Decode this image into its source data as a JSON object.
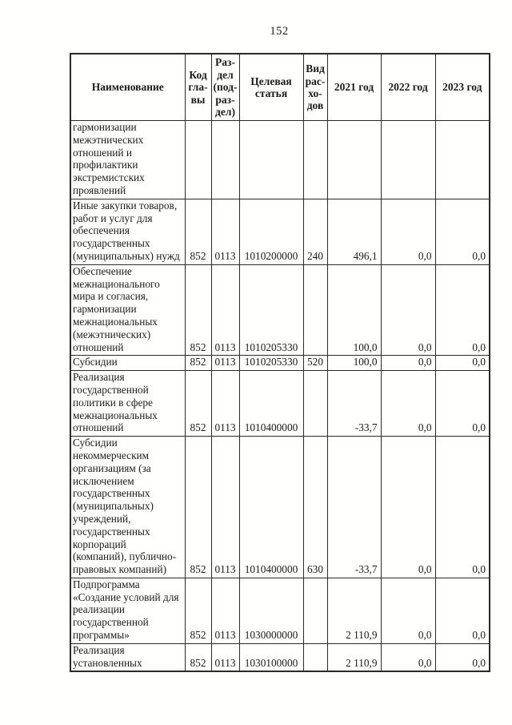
{
  "page": {
    "number": "152"
  },
  "colors": {
    "paper": "#ffffff",
    "text": "#1b1b1b",
    "border": "#2a2a2a"
  },
  "table": {
    "headers": [
      "Наименование",
      "Код\nгла-\nвы",
      "Раз-\nдел\n(под-\nраз-\nдел)",
      "Целевая\nстатья",
      "Вид\nрас-\nхо-\nдов",
      "2021 год",
      "2022 год",
      "2023 год"
    ],
    "rows": [
      {
        "name": "гармонизации\nмежэтнических\nотношений и\nпрофилактики\nэкстремистских\nпроявлений",
        "kod": "",
        "razdel": "",
        "target": "",
        "vid": "",
        "y2021": "",
        "y2022": "",
        "y2023": ""
      },
      {
        "name": "Иные закупки товаров,\nработ и услуг для\nобеспечения\nгосударственных\n(муниципальных) нужд",
        "kod": "852",
        "razdel": "0113",
        "target": "1010200000",
        "vid": "240",
        "y2021": "496,1",
        "y2022": "0,0",
        "y2023": "0,0"
      },
      {
        "name": "Обеспечение\nмежнационального\nмира и согласия,\nгармонизации\nмежнациональных\n(межэтнических)\nотношений",
        "kod": "852",
        "razdel": "0113",
        "target": "1010205330",
        "vid": "",
        "y2021": "100,0",
        "y2022": "0,0",
        "y2023": "0,0"
      },
      {
        "name": "Субсидии",
        "kod": "852",
        "razdel": "0113",
        "target": "1010205330",
        "vid": "520",
        "y2021": "100,0",
        "y2022": "0,0",
        "y2023": "0,0"
      },
      {
        "name": "Реализация\nгосударственной\nполитики в сфере\nмежнациональных\nотношений",
        "kod": "852",
        "razdel": "0113",
        "target": "1010400000",
        "vid": "",
        "y2021": "-33,7",
        "y2022": "0,0",
        "y2023": "0,0"
      },
      {
        "name": "Субсидии\nнекоммерческим\nорганизациям (за\nисключением\nгосударственных\n(муниципальных)\nучреждений,\nгосударственных\nкорпораций\n(компаний), публично-\nправовых компаний)",
        "kod": "852",
        "razdel": "0113",
        "target": "1010400000",
        "vid": "630",
        "y2021": "-33,7",
        "y2022": "0,0",
        "y2023": "0,0"
      },
      {
        "name": "Подпрограмма\n«Создание условий для\nреализации\nгосударственной\nпрограммы»",
        "kod": "852",
        "razdel": "0113",
        "target": "1030000000",
        "vid": "",
        "y2021": "2 110,9",
        "y2022": "0,0",
        "y2023": "0,0"
      },
      {
        "name": "Реализация\nустановленных",
        "kod": "852",
        "razdel": "0113",
        "target": "1030100000",
        "vid": "",
        "y2021": "2 110,9",
        "y2022": "0,0",
        "y2023": "0,0"
      }
    ]
  }
}
